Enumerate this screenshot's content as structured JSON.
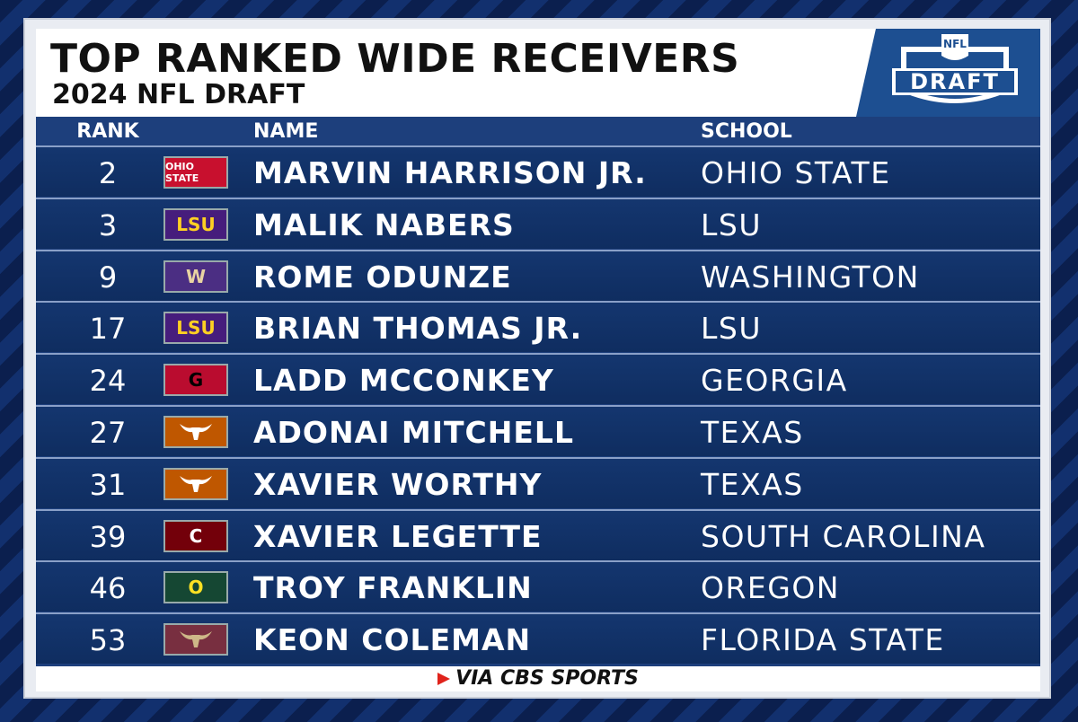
{
  "header": {
    "title": "TOP RANKED WIDE RECEIVERS",
    "subtitle": "2024 NFL DRAFT",
    "logo_top": "NFL",
    "logo_text": "DRAFT"
  },
  "table": {
    "columns": [
      "RANK",
      "NAME",
      "SCHOOL"
    ],
    "rows": [
      {
        "rank": 2,
        "name": "MARVIN HARRISON JR.",
        "school": "OHIO STATE",
        "logo": {
          "text": "OHIO STATE",
          "bg": "#c8102e",
          "fg": "#ffffff"
        }
      },
      {
        "rank": 3,
        "name": "MALIK NABERS",
        "school": "LSU",
        "logo": {
          "text": "LSU",
          "bg": "#461d7c",
          "fg": "#fdd023"
        }
      },
      {
        "rank": 9,
        "name": "ROME ODUNZE",
        "school": "WASHINGTON",
        "logo": {
          "text": "W",
          "bg": "#4b2e83",
          "fg": "#e8d3a2"
        }
      },
      {
        "rank": 17,
        "name": "BRIAN THOMAS JR.",
        "school": "LSU",
        "logo": {
          "text": "LSU",
          "bg": "#461d7c",
          "fg": "#fdd023"
        }
      },
      {
        "rank": 24,
        "name": "LADD MCCONKEY",
        "school": "GEORGIA",
        "logo": {
          "text": "G",
          "bg": "#ba0c2f",
          "fg": "#000000"
        }
      },
      {
        "rank": 27,
        "name": "ADONAI MITCHELL",
        "school": "TEXAS",
        "logo": {
          "bg": "#bf5700",
          "fg": "#ffffff"
        }
      },
      {
        "rank": 31,
        "name": "XAVIER WORTHY",
        "school": "TEXAS",
        "logo": {
          "bg": "#bf5700",
          "fg": "#ffffff"
        }
      },
      {
        "rank": 39,
        "name": "XAVIER LEGETTE",
        "school": "SOUTH CAROLINA",
        "logo": {
          "text": "C",
          "bg": "#73000a",
          "fg": "#ffffff"
        }
      },
      {
        "rank": 46,
        "name": "TROY FRANKLIN",
        "school": "OREGON",
        "logo": {
          "text": "O",
          "bg": "#154733",
          "fg": "#fee123"
        }
      },
      {
        "rank": 53,
        "name": "KEON COLEMAN",
        "school": "FLORIDA STATE",
        "logo": {
          "bg": "#782f40",
          "fg": "#ceb888"
        }
      }
    ]
  },
  "footer": "VIA CBS SPORTS"
}
